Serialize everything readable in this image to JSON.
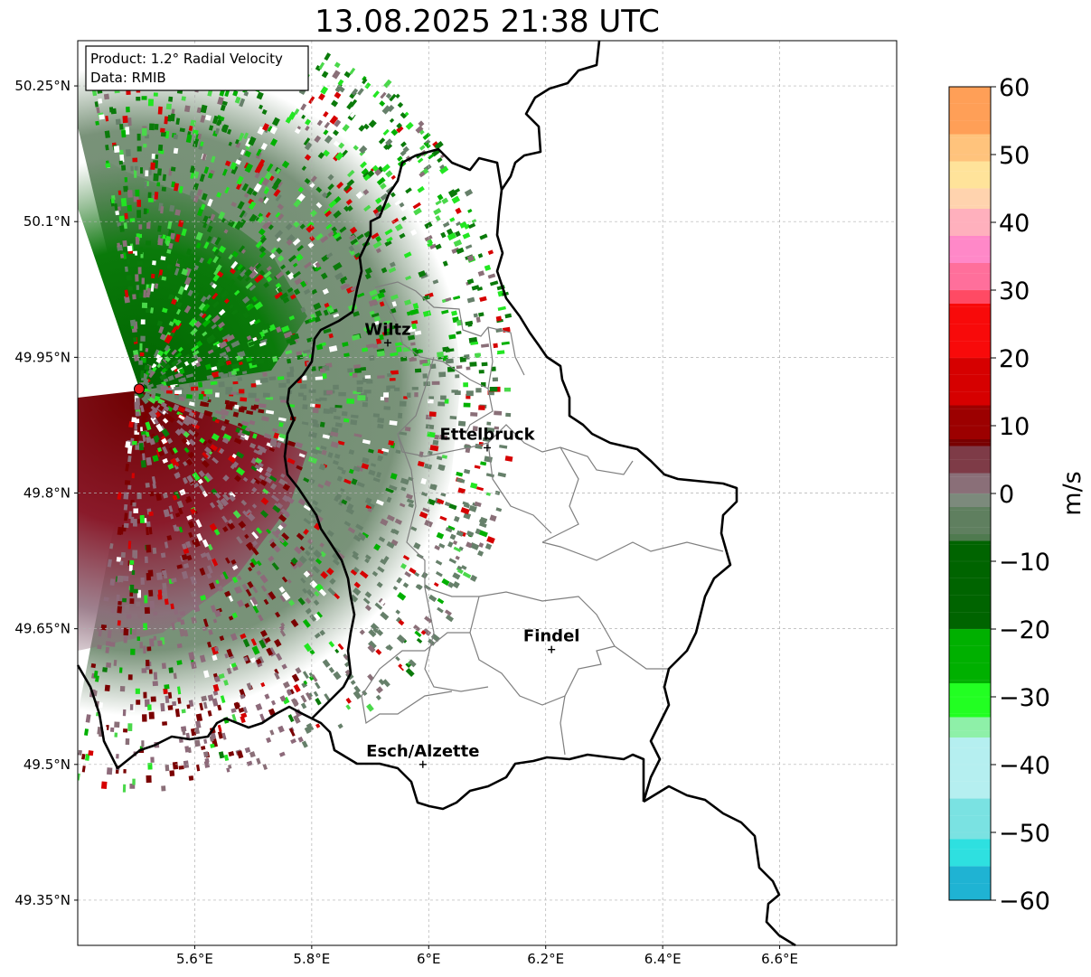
{
  "title": "13.08.2025 21:38 UTC",
  "info_box": {
    "product": "Product: 1.2° Radial Velocity",
    "data_source": "Data: RMIB"
  },
  "axes": {
    "x_ticks": [
      "5.6°E",
      "5.8°E",
      "6°E",
      "6.2°E",
      "6.4°E",
      "6.6°E"
    ],
    "y_ticks": [
      "50.25°N",
      "50.1°N",
      "49.95°N",
      "49.8°N",
      "49.65°N",
      "49.5°N",
      "49.35°N"
    ],
    "xlim": [
      5.4,
      6.8
    ],
    "ylim": [
      49.3,
      50.3
    ],
    "grid": true
  },
  "cities": [
    {
      "name": "Wiltz",
      "lon": 5.93,
      "lat": 49.966
    },
    {
      "name": "Ettelbruck",
      "lon": 6.1,
      "lat": 49.85
    },
    {
      "name": "Findel",
      "lon": 6.21,
      "lat": 49.627
    },
    {
      "name": "Esch/Alzette",
      "lon": 5.99,
      "lat": 49.5
    }
  ],
  "radar_site": {
    "lon": 5.505,
    "lat": 49.915,
    "color": "#e8161b"
  },
  "colorbar": {
    "label": "m/s",
    "ticks": [
      "60",
      "50",
      "40",
      "30",
      "20",
      "10",
      "0",
      "−10",
      "−20",
      "−30",
      "−40",
      "−50",
      "−60"
    ],
    "range": [
      -60,
      60
    ],
    "stops": [
      {
        "v": 60,
        "c": "#ff9f57"
      },
      {
        "v": 53,
        "c": "#ffc37c"
      },
      {
        "v": 49,
        "c": "#ffe39a"
      },
      {
        "v": 45,
        "c": "#ffd3ae"
      },
      {
        "v": 42,
        "c": "#ffb0bd"
      },
      {
        "v": 38,
        "c": "#ff88c8"
      },
      {
        "v": 34,
        "c": "#ff6f9b"
      },
      {
        "v": 30,
        "c": "#ff4a64"
      },
      {
        "v": 28,
        "c": "#f80a0a"
      },
      {
        "v": 20,
        "c": "#d60000"
      },
      {
        "v": 13,
        "c": "#9c0000"
      },
      {
        "v": 8,
        "c": "#780000"
      },
      {
        "v": 7,
        "c": "#7e3b47"
      },
      {
        "v": 3,
        "c": "#8a6f78"
      },
      {
        "v": 0,
        "c": "#7c8a7c"
      },
      {
        "v": -2,
        "c": "#5f7f5f"
      },
      {
        "v": -6,
        "c": "#4f7a4f"
      },
      {
        "v": -7,
        "c": "#006400"
      },
      {
        "v": -20,
        "c": "#00b000"
      },
      {
        "v": -28,
        "c": "#22ff22"
      },
      {
        "v": -33,
        "c": "#8ef0a8"
      },
      {
        "v": -36,
        "c": "#b5eff0"
      },
      {
        "v": -45,
        "c": "#7ae2e2"
      },
      {
        "v": -51,
        "c": "#2ee0e0"
      },
      {
        "v": -55,
        "c": "#1fb3d3"
      },
      {
        "v": -60,
        "c": "#1c78c0"
      }
    ]
  },
  "colors": {
    "border": "#000000",
    "cantons": "#7f7f7f",
    "grid": "#b0b0b0",
    "outbound_dark": "#7a0000",
    "outbound_mauve": "#8d6a7a",
    "near_zero": "#66806a",
    "inbound_green": "#0a7a0a",
    "inbound_bright": "#22e622"
  }
}
